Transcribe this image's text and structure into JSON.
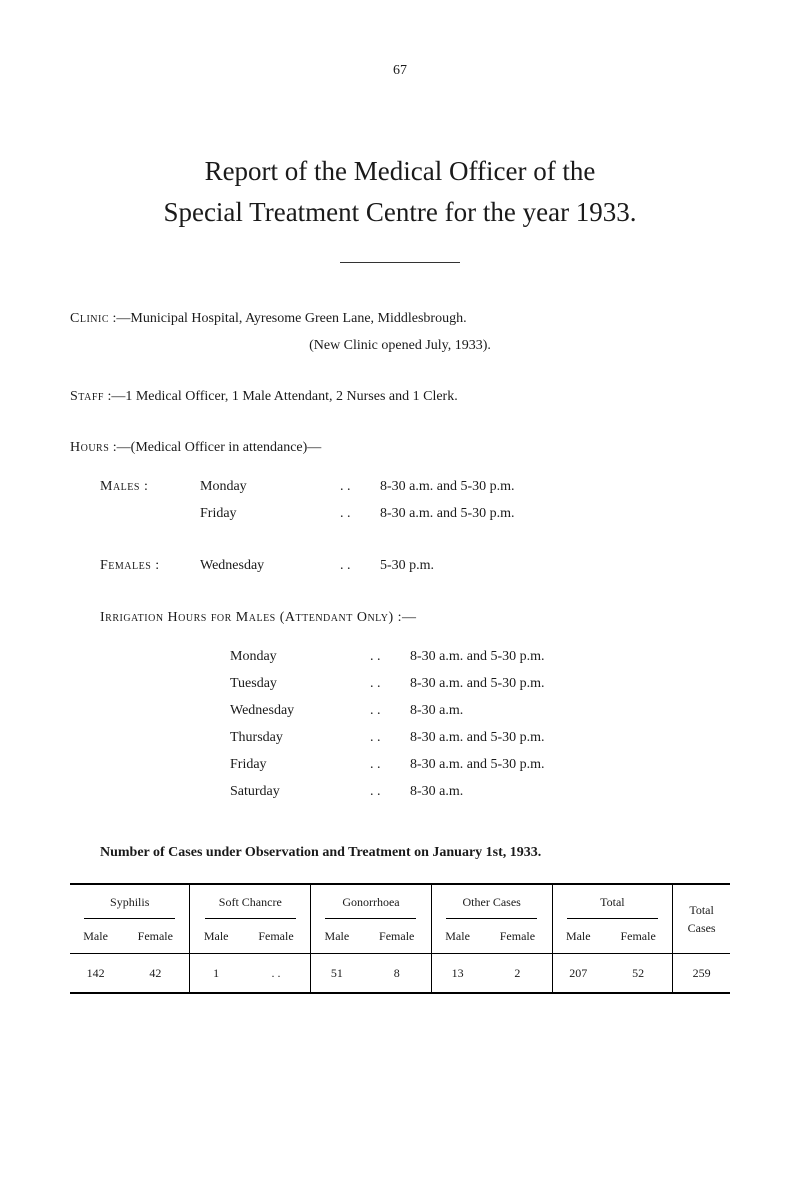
{
  "page_number": "67",
  "title_line_1": "Report of the Medical Officer of the",
  "title_line_2": "Special Treatment Centre for the year 1933.",
  "clinic": {
    "label": "Clinic",
    "text": ":—Municipal Hospital, Ayresome Green Lane, Middlesbrough.",
    "subtext": "(New Clinic opened July, 1933)."
  },
  "staff": {
    "label": "Staff",
    "text": ":—1 Medical Officer, 1 Male Attendant, 2 Nurses and 1 Clerk."
  },
  "hours": {
    "header_label": "Hours",
    "header_text": ":—(Medical Officer in attendance)—",
    "rows": [
      {
        "label": "Males :",
        "day": "Monday",
        "dots": ". .",
        "time": "8-30 a.m. and 5-30 p.m."
      },
      {
        "label": "",
        "day": "Friday",
        "dots": ". .",
        "time": "8-30 a.m. and 5-30 p.m."
      },
      {
        "label": "Females :",
        "day": "Wednesday",
        "dots": ". .",
        "time": "5-30 p.m."
      }
    ]
  },
  "irrigation": {
    "header": "Irrigation Hours for Males (Attendant Only) :—",
    "rows": [
      {
        "day": "Monday",
        "dots": ". .",
        "time": "8-30 a.m. and 5-30 p.m."
      },
      {
        "day": "Tuesday",
        "dots": ". .",
        "time": "8-30 a.m. and 5-30 p.m."
      },
      {
        "day": "Wednesday",
        "dots": ". .",
        "time": "8-30 a.m."
      },
      {
        "day": "Thursday",
        "dots": ". .",
        "time": "8-30 a.m. and 5-30 p.m."
      },
      {
        "day": "Friday",
        "dots": ". .",
        "time": "8-30 a.m. and 5-30 p.m."
      },
      {
        "day": "Saturday",
        "dots": ". .",
        "time": "8-30 a.m."
      }
    ]
  },
  "table_section": {
    "title": "Number of Cases under Observation and Treatment on January 1st, 1933.",
    "groups": [
      {
        "name": "Syphilis",
        "sub1": "Male",
        "sub2": "Female"
      },
      {
        "name": "Soft Chancre",
        "sub1": "Male",
        "sub2": "Female"
      },
      {
        "name": "Gonorrhoea",
        "sub1": "Male",
        "sub2": "Female"
      },
      {
        "name": "Other Cases",
        "sub1": "Male",
        "sub2": "Female"
      },
      {
        "name": "Total",
        "sub1": "Male",
        "sub2": "Female"
      }
    ],
    "total_cases_label_1": "Total",
    "total_cases_label_2": "Cases",
    "data": {
      "syphilis_male": "142",
      "syphilis_female": "42",
      "soft_chancre_male": "1",
      "soft_chancre_female": ". .",
      "gonorrhoea_male": "51",
      "gonorrhoea_female": "8",
      "other_male": "13",
      "other_female": "2",
      "total_male": "207",
      "total_female": "52",
      "total_cases": "259"
    }
  }
}
